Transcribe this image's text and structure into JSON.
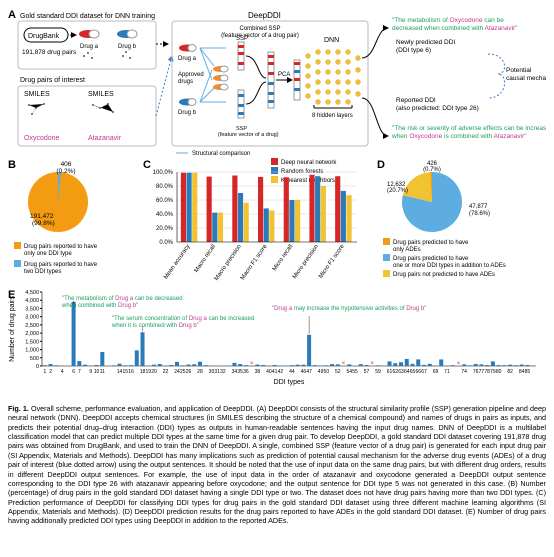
{
  "figure_label": "Fig. 1.",
  "caption": "Overall scheme, performance evaluation, and application of DeepDDI. (A) DeepDDI consists of the structural similarity profile (SSP) generation pipeline and deep neural network (DNN). DeepDDI accepts chemical structures (in SMILES describing the structure of a chemical compound) and names of drugs in pairs as inputs, and predicts their potential drug–drug interaction (DDI) types as outputs in human-readable sentences having the input drug names. DNN of DeepDDI is a multilabel classification model that can predict multiple DDI types at the same time for a given drug pair. To develop DeepDDI, a gold standard DDI dataset covering 191,878 drug pairs was obtained from DrugBank, and used to train the DNN of DeepDDI. A single, combined SSP (feature vector of a drug pair) is generated for each input drug pair (SI Appendix, Materials and Methods). DeepDDI has many implications such as prediction of potential causal mechanism for the adverse drug events (ADEs) of a drug pair of interest (blue dotted arrow) using the output sentences. It should be noted that the use of input data on the same drug pairs, but with different drug orders, results in different DeepDDI output sentences. For example, the use of input data in the order of atazanavir and oxycodone generated a DeepDDI output sentence corresponding to the DDI type 26 with atazanavir appearing before oxycodone; and the output sentence for DDI type 5 was not generated in this case. (B) Number (percentage) of drug pairs in the gold standard DDI dataset having a single DDI type or two. The dataset does not have drug pairs having more than two DDI types. (C) Prediction performance of DeepDDI for classifying DDI types for drug pairs in the gold standard DDI dataset using three different machine learning algorithms (SI Appendix, Materials and Methods). (D) DeepDDI prediction results for the drug pairs reported to have ADEs in the gold standard DDI dataset. (E) Number of drug pairs having additionally predicted DDI types using DeepDDI in addition to the reported ADEs.",
  "panelA": {
    "gold_title": "Gold standard DDI dataset for DNN training",
    "drugbank": "DrugBank",
    "npairs": "191,878 drug pairs",
    "druga": "Drug a",
    "drugb": "Drug b",
    "poi": "Drug pairs of interest",
    "smiles": "SMILES",
    "oxy": "Oxycodone",
    "ata": "Atazanavir",
    "deepddi": "DeepDDI",
    "combined": "Combined SSP\n(feature vector of a drug pair)",
    "ssp": "SSP",
    "ssp_long": "SSP\n(feature vector of a drug)",
    "approved": "Approved\ndrugs",
    "struct": "Structural comparison",
    "pca": "PCA",
    "dnn": "DNN",
    "hidden": "8 hidden layers",
    "pred": "Newly predicted DDI\n(DDI type 6)",
    "reported": "Reported DDI\n(also predicted: DDI type 26)",
    "potential": "Potential\ncausal mechanism",
    "sent1_pre": "\"The metabolism of ",
    "sent1_mid": " can be decreased when combined with ",
    "sent1_end": "\"",
    "sent2_pre": "\"The risk or severity of adverse effects can be increased when ",
    "sent2_mid": " is combined with ",
    "sent2_end": "\"",
    "colors": {
      "green": "#1a9e5c",
      "red": "#d62728",
      "blue": "#2b7bba",
      "magenta": "#c0398f",
      "skyblue": "#5dade2",
      "orange": "#f08c2e",
      "yellow": "#f1c232",
      "box": "#bbb",
      "dash": "#3a78c9"
    }
  },
  "panelB": {
    "slice1_label": "406\n(0.2%)",
    "slice2_label": "191,472\n(99.8%)",
    "legend": [
      "Drug pairs reported to have\nonly one DDI type",
      "Drug pairs reported to have\ntwo DDI types"
    ],
    "colors": {
      "big": "#f39c12",
      "small": "#5dade2"
    }
  },
  "panelC": {
    "methods": [
      "Deep neural network",
      "Random forests",
      "K-nearest neighbors"
    ],
    "metrics": [
      "Mean accuracy",
      "Macro recall",
      "Macro precision",
      "Macro F1 score",
      "Micro recall",
      "Micro precision",
      "Micro F1 score"
    ],
    "dnn": [
      99,
      93.5,
      95,
      93,
      92.5,
      96,
      94
    ],
    "rf": [
      99,
      42,
      70,
      48,
      60,
      94,
      73
    ],
    "knn": [
      99,
      42,
      56,
      45,
      60,
      80,
      67
    ],
    "yticks": [
      0,
      20,
      40,
      60,
      80,
      100
    ],
    "colors": {
      "dnn": "#d62728",
      "rf": "#2b7bba",
      "knn": "#f1c232",
      "grid": "#d0d0d0"
    }
  },
  "panelD": {
    "labels": [
      "426\n(0.7%)",
      "12,632\n(20.7%)",
      "47,877\n(78.6%)"
    ],
    "legend": [
      "Drug pairs predicted to have\nonly ADEs",
      "Drug pairs predicted to have\none or more DDI types in addition to ADEs",
      "Drug pairs not predicted to have ADEs"
    ],
    "colors": {
      "c1": "#f39c12",
      "c2": "#5dade2",
      "c3": "#f1c232"
    }
  },
  "panelE": {
    "xlabel": "DDI types",
    "ylabel": "Number of drug pairs",
    "yticks": [
      0,
      500,
      1000,
      1500,
      2000,
      2500,
      3000,
      3500,
      4000,
      4500
    ],
    "note1": "\"The metabolism of Drug a can be decreased\nwhen combined with Drug b\"",
    "note2": "\"The serum concentration of Drug a can be increased\nwhen it is combined with Drug b\"",
    "note3": "\"Drug a may increase the hypotensive activities of Drug b\"",
    "bar_color": "#2b7bba",
    "highlights": [
      6,
      18,
      47
    ],
    "values": [
      50,
      120,
      40,
      30,
      0,
      3900,
      300,
      80,
      25,
      60,
      850,
      20,
      40,
      140,
      40,
      50,
      950,
      2050,
      30,
      80,
      120,
      30,
      60,
      250,
      40,
      90,
      105,
      260,
      50,
      30,
      15,
      10,
      30,
      190,
      120,
      50,
      -1,
      90,
      60,
      0,
      60,
      20,
      30,
      50,
      80,
      80,
      1900,
      50,
      30,
      40,
      115,
      100,
      -1,
      100,
      0,
      110,
      60,
      -1,
      40,
      20,
      280,
      170,
      230,
      430,
      130,
      400,
      70,
      130,
      30,
      400,
      20,
      50,
      -1,
      100,
      40,
      120,
      100,
      60,
      280,
      55,
      50,
      80,
      50,
      90,
      60,
      30
    ],
    "xticks": [
      1,
      2,
      4,
      6,
      7,
      9,
      10,
      11,
      14,
      15,
      16,
      18,
      19,
      20,
      22,
      24,
      25,
      26,
      28,
      30,
      31,
      32,
      34,
      35,
      36,
      38,
      40,
      41,
      42,
      44,
      46,
      47,
      49,
      50,
      52,
      54,
      55,
      57,
      59,
      61,
      62,
      63,
      64,
      65,
      66,
      67,
      69,
      71,
      74,
      76,
      77,
      78,
      79,
      80,
      82,
      84,
      85
    ]
  }
}
